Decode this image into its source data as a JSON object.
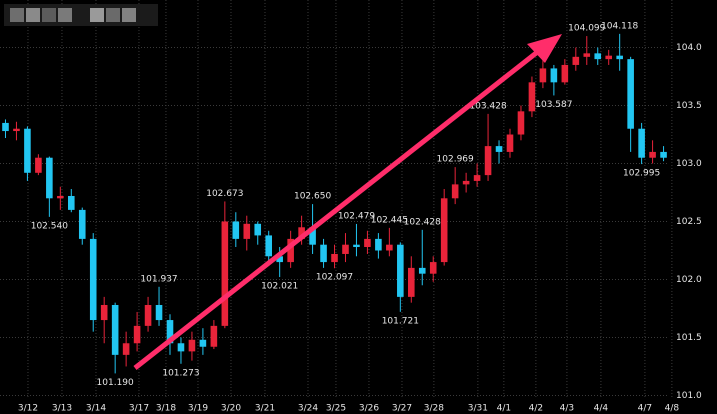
{
  "chart_data": {
    "type": "candlestick",
    "x": [
      0,
      1,
      2,
      3,
      4,
      5,
      6,
      7,
      8,
      9,
      10,
      11,
      12,
      13,
      14,
      15,
      16,
      17,
      18,
      19,
      20,
      21,
      22,
      23,
      24,
      25,
      26,
      27,
      28,
      29,
      30,
      31,
      32,
      33,
      34,
      35,
      36,
      37,
      38,
      39,
      40,
      41,
      42,
      43,
      44,
      45,
      46,
      47,
      48,
      49,
      50,
      51,
      52,
      53,
      54,
      55,
      56,
      57,
      58,
      59,
      60
    ],
    "open": [
      103.35,
      103.28,
      103.3,
      102.92,
      103.05,
      102.7,
      102.72,
      102.6,
      102.35,
      101.65,
      101.78,
      101.35,
      101.45,
      101.6,
      101.78,
      101.65,
      101.45,
      101.38,
      101.48,
      101.42,
      101.6,
      102.5,
      102.35,
      102.48,
      102.38,
      102.2,
      102.15,
      102.35,
      102.45,
      102.3,
      102.15,
      102.22,
      102.3,
      102.28,
      102.35,
      102.25,
      102.3,
      101.85,
      102.1,
      102.05,
      102.15,
      102.7,
      102.82,
      102.85,
      102.9,
      103.15,
      103.1,
      103.25,
      103.45,
      103.7,
      103.82,
      103.7,
      103.85,
      103.92,
      103.95,
      103.9,
      103.93,
      103.9,
      103.3,
      103.05,
      103.1
    ],
    "high": [
      103.38,
      103.36,
      103.32,
      103.08,
      103.06,
      102.8,
      102.78,
      102.62,
      102.4,
      101.85,
      101.8,
      101.55,
      101.72,
      101.85,
      101.937,
      101.7,
      101.5,
      101.55,
      101.58,
      101.65,
      102.673,
      102.58,
      102.55,
      102.5,
      102.42,
      102.28,
      102.42,
      102.55,
      102.65,
      102.35,
      102.3,
      102.4,
      102.479,
      102.42,
      102.4,
      102.445,
      102.32,
      102.2,
      102.428,
      102.2,
      102.78,
      102.969,
      102.92,
      103.0,
      103.428,
      103.2,
      103.3,
      103.5,
      103.75,
      103.9,
      103.85,
      103.9,
      104.0,
      104.099,
      104.0,
      103.98,
      104.118,
      103.92,
      103.35,
      103.2,
      103.15
    ],
    "low": [
      103.22,
      103.2,
      102.85,
      102.9,
      102.54,
      102.6,
      102.58,
      102.3,
      101.55,
      101.45,
      101.19,
      101.25,
      101.38,
      101.55,
      101.6,
      101.35,
      101.273,
      101.3,
      101.35,
      101.4,
      101.58,
      102.28,
      102.25,
      102.3,
      102.12,
      102.021,
      102.1,
      102.3,
      102.22,
      102.1,
      102.097,
      102.15,
      102.2,
      102.22,
      102.18,
      102.2,
      101.721,
      101.8,
      101.95,
      101.98,
      102.12,
      102.65,
      102.75,
      102.8,
      102.85,
      103.0,
      103.05,
      103.2,
      103.4,
      103.65,
      103.587,
      103.68,
      103.8,
      103.85,
      103.85,
      103.85,
      103.8,
      103.1,
      102.995,
      103.0,
      103.02
    ],
    "close": [
      103.28,
      103.3,
      102.92,
      103.05,
      102.7,
      102.72,
      102.6,
      102.35,
      101.65,
      101.78,
      101.35,
      101.45,
      101.6,
      101.78,
      101.65,
      101.45,
      101.38,
      101.48,
      101.42,
      101.6,
      102.5,
      102.35,
      102.48,
      102.38,
      102.2,
      102.15,
      102.35,
      102.45,
      102.3,
      102.15,
      102.22,
      102.3,
      102.28,
      102.35,
      102.25,
      102.3,
      101.85,
      102.1,
      102.05,
      102.15,
      102.7,
      102.82,
      102.85,
      102.9,
      103.15,
      103.1,
      103.25,
      103.45,
      103.7,
      103.82,
      103.7,
      103.85,
      103.92,
      103.95,
      103.9,
      103.93,
      103.9,
      103.3,
      103.05,
      103.1,
      103.05
    ],
    "up_color": "#e8243a",
    "down_color": "#22c6f2",
    "xlim": [
      -0.5,
      61.5
    ],
    "ylim": [
      100.84,
      104.41
    ],
    "xticks": [
      {
        "value": 2.05,
        "label": "3/12"
      },
      {
        "value": 5.15,
        "label": "3/13"
      },
      {
        "value": 8.25,
        "label": "3/14"
      },
      {
        "value": 12.17,
        "label": "3/17"
      },
      {
        "value": 14.63,
        "label": "3/18"
      },
      {
        "value": 17.55,
        "label": "3/19"
      },
      {
        "value": 20.56,
        "label": "3/20"
      },
      {
        "value": 23.66,
        "label": "3/21"
      },
      {
        "value": 27.58,
        "label": "3/24"
      },
      {
        "value": 30.13,
        "label": "3/25"
      },
      {
        "value": 33.14,
        "label": "3/26"
      },
      {
        "value": 36.15,
        "label": "3/27"
      },
      {
        "value": 39.06,
        "label": "3/28"
      },
      {
        "value": 43.07,
        "label": "3/31"
      },
      {
        "value": 45.44,
        "label": "4/1"
      },
      {
        "value": 48.36,
        "label": "4/2"
      },
      {
        "value": 51.19,
        "label": "4/3"
      },
      {
        "value": 54.29,
        "label": "4/4"
      },
      {
        "value": 58.3,
        "label": "4/7"
      },
      {
        "value": 60.76,
        "label": "4/8"
      }
    ],
    "yticks": [
      {
        "value": 101,
        "label": "101.0"
      },
      {
        "value": 101.5,
        "label": "101.5"
      },
      {
        "value": 102,
        "label": "102.0"
      },
      {
        "value": 102.5,
        "label": "102.5"
      },
      {
        "value": 103,
        "label": "103.0"
      },
      {
        "value": 103.5,
        "label": "103.5"
      },
      {
        "value": 104,
        "label": "104.0"
      }
    ],
    "grid": true,
    "annotations": [
      {
        "label": "102.540",
        "value": 102.54,
        "x": 4
      },
      {
        "label": "101.190",
        "value": 101.19,
        "x": 10
      },
      {
        "label": "101.937",
        "value": 101.937,
        "x": 14
      },
      {
        "label": "101.273",
        "value": 101.273,
        "x": 16
      },
      {
        "label": "102.673",
        "value": 102.673,
        "x": 20
      },
      {
        "label": "102.021",
        "value": 102.021,
        "x": 25
      },
      {
        "label": "102.650",
        "value": 102.65,
        "x": 28
      },
      {
        "label": "102.097",
        "value": 102.097,
        "x": 30
      },
      {
        "label": "102.479",
        "value": 102.479,
        "x": 32
      },
      {
        "label": "102.445",
        "value": 102.445,
        "x": 35
      },
      {
        "label": "101.721",
        "value": 101.721,
        "x": 36
      },
      {
        "label": "102.428",
        "value": 102.428,
        "x": 38
      },
      {
        "label": "102.969",
        "value": 102.969,
        "x": 41
      },
      {
        "label": "103.428",
        "value": 103.428,
        "x": 44
      },
      {
        "label": "103.587",
        "value": 103.587,
        "x": 50
      },
      {
        "label": "104.099",
        "value": 104.099,
        "x": 53
      },
      {
        "label": "104.118",
        "value": 104.118,
        "x": 56
      },
      {
        "label": "102.995",
        "value": 102.995,
        "x": 58
      }
    ]
  }
}
